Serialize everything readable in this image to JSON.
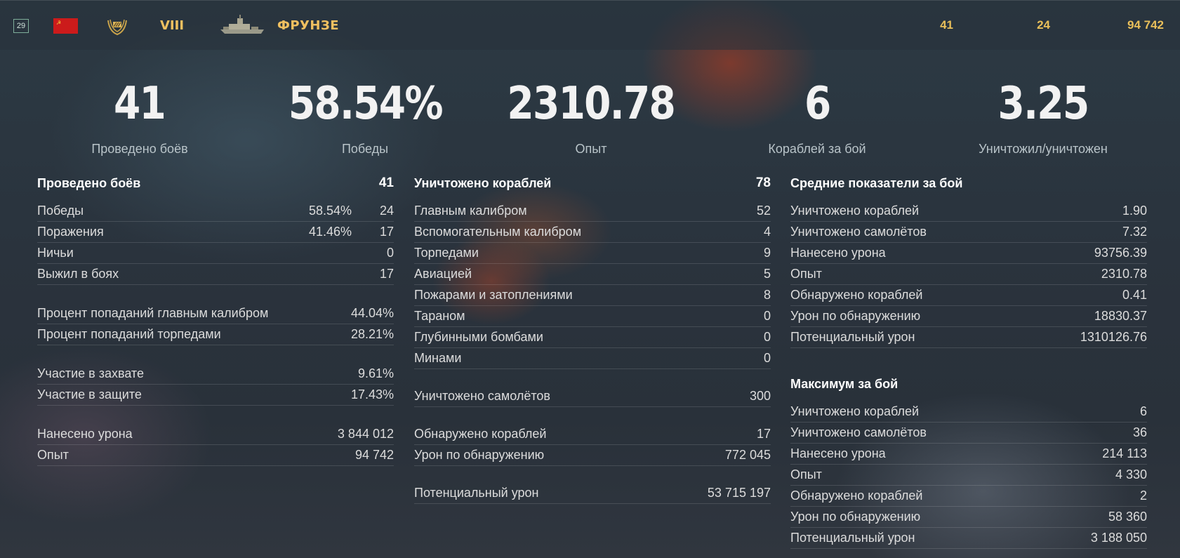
{
  "header": {
    "level": "29",
    "flag_icon": "ussr-flag-icon",
    "emblem_icon": "tier-emblem-icon",
    "tier": "VIII",
    "ship_icon": "ship-silhouette-icon",
    "ship_name": "ФРУНЗЕ",
    "battles": "41",
    "wins": "24",
    "experience": "94 742",
    "accent_color": "#f0c060"
  },
  "summary": [
    {
      "value": "41",
      "label": "Проведено боёв"
    },
    {
      "value": "58.54%",
      "label": "Победы"
    },
    {
      "value": "2310.78",
      "label": "Опыт"
    },
    {
      "value": "6",
      "label": "Кораблей за бой"
    },
    {
      "value": "3.25",
      "label": "Уничтожил/уничтожен"
    }
  ],
  "col1": {
    "head_label": "Проведено боёв",
    "head_value": "41",
    "wins_label": "Победы",
    "wins_pct": "58.54%",
    "wins_value": "24",
    "losses_label": "Поражения",
    "losses_pct": "41.46%",
    "losses_value": "17",
    "draws_label": "Ничьи",
    "draws_value": "0",
    "survived_label": "Выжил в боях",
    "survived_value": "17",
    "main_hit_label": "Процент попаданий главным калибром",
    "main_hit_value": "44.04%",
    "torp_hit_label": "Процент попаданий торпедами",
    "torp_hit_value": "28.21%",
    "capture_label": "Участие в захвате",
    "capture_value": "9.61%",
    "defense_label": "Участие в защите",
    "defense_value": "17.43%",
    "damage_label": "Нанесено урона",
    "damage_value": "3 844 012",
    "exp_label": "Опыт",
    "exp_value": "94 742"
  },
  "col2": {
    "head_label": "Уничтожено кораблей",
    "head_value": "78",
    "rows": [
      {
        "label": "Главным калибром",
        "value": "52"
      },
      {
        "label": "Вспомогательным калибром",
        "value": "4"
      },
      {
        "label": "Торпедами",
        "value": "9"
      },
      {
        "label": "Авиацией",
        "value": "5"
      },
      {
        "label": "Пожарами и затоплениями",
        "value": "8"
      },
      {
        "label": "Тараном",
        "value": "0"
      },
      {
        "label": "Глубинными бомбами",
        "value": "0"
      },
      {
        "label": "Минами",
        "value": "0"
      }
    ],
    "planes_label": "Уничтожено самолётов",
    "planes_value": "300",
    "spotted_label": "Обнаружено кораблей",
    "spotted_value": "17",
    "spot_dmg_label": "Урон по обнаружению",
    "spot_dmg_value": "772 045",
    "potential_label": "Потенциальный урон",
    "potential_value": "53 715 197"
  },
  "col3": {
    "avg_head": "Средние показатели за бой",
    "avg_rows": [
      {
        "label": "Уничтожено кораблей",
        "value": "1.90"
      },
      {
        "label": "Уничтожено самолётов",
        "value": "7.32"
      },
      {
        "label": "Нанесено урона",
        "value": "93756.39"
      },
      {
        "label": "Опыт",
        "value": "2310.78"
      },
      {
        "label": "Обнаружено кораблей",
        "value": "0.41"
      },
      {
        "label": "Урон по обнаружению",
        "value": "18830.37"
      },
      {
        "label": "Потенциальный урон",
        "value": "1310126.76"
      }
    ],
    "max_head": "Максимум за бой",
    "max_rows": [
      {
        "label": "Уничтожено кораблей",
        "value": "6"
      },
      {
        "label": "Уничтожено самолётов",
        "value": "36"
      },
      {
        "label": "Нанесено урона",
        "value": "214 113"
      },
      {
        "label": "Опыт",
        "value": "4 330"
      },
      {
        "label": "Обнаружено кораблей",
        "value": "2"
      },
      {
        "label": "Урон по обнаружению",
        "value": "58 360"
      },
      {
        "label": "Потенциальный урон",
        "value": "3 188 050"
      }
    ]
  }
}
